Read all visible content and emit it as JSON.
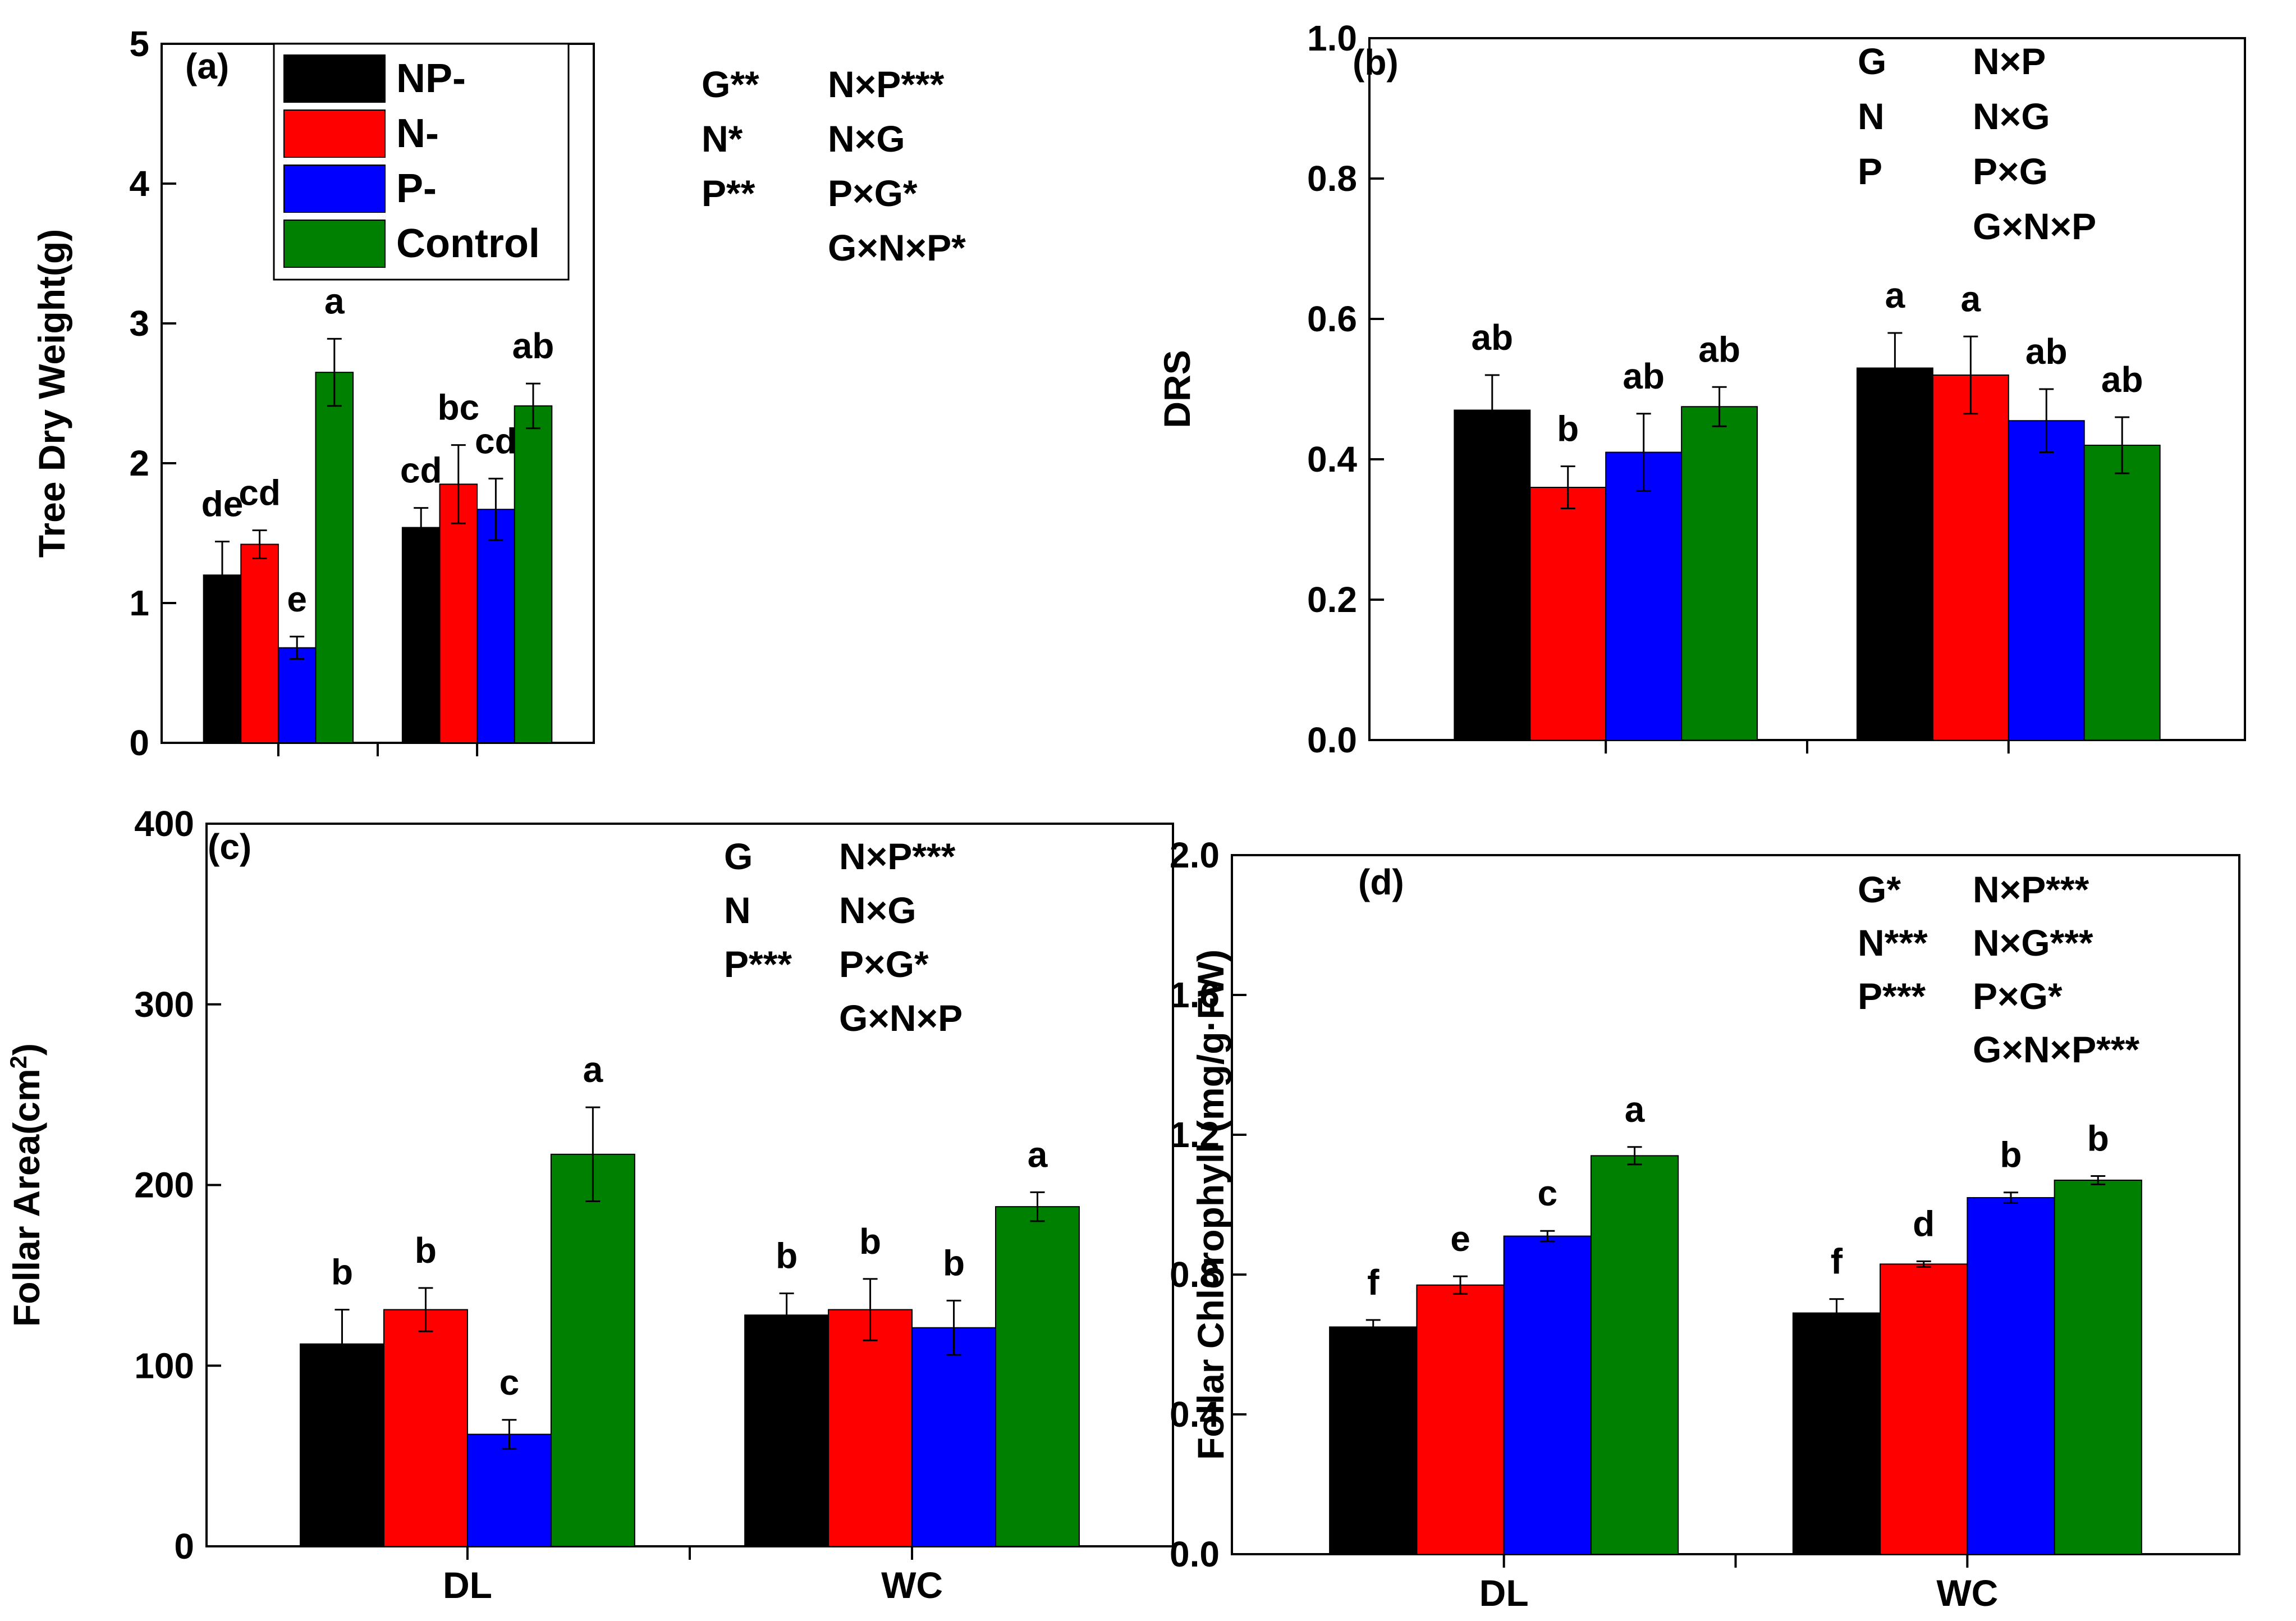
{
  "legend": {
    "entries": [
      {
        "label": "NP-",
        "color": "#000000"
      },
      {
        "label": "N-",
        "color": "#ff0000"
      },
      {
        "label": "P-",
        "color": "#0000ff"
      },
      {
        "label": "Control",
        "color": "#008000"
      }
    ]
  },
  "chart_data": [
    {
      "panel": "(a)",
      "type": "bar",
      "ylabel": "Tree Dry Weight(g)",
      "ylim": [
        0,
        5
      ],
      "yticks": [
        "0",
        "1",
        "2",
        "3",
        "4",
        "5"
      ],
      "categories": [
        "",
        ""
      ],
      "series": [
        {
          "name": "NP-",
          "color": "#000000",
          "values": [
            1.2,
            1.54
          ],
          "errors": [
            0.24,
            0.14
          ],
          "letters": [
            "de",
            "cd"
          ]
        },
        {
          "name": "N-",
          "color": "#ff0000",
          "values": [
            1.42,
            1.85
          ],
          "errors": [
            0.1,
            0.28
          ],
          "letters": [
            "cd",
            "bc"
          ]
        },
        {
          "name": "P-",
          "color": "#0000ff",
          "values": [
            0.68,
            1.67
          ],
          "errors": [
            0.08,
            0.22
          ],
          "letters": [
            "e",
            "cd"
          ]
        },
        {
          "name": "Control",
          "color": "#008000",
          "values": [
            2.65,
            2.41
          ],
          "errors": [
            0.24,
            0.16
          ],
          "letters": [
            "a",
            "ab"
          ]
        }
      ],
      "significance": [
        [
          "G**",
          "N×P***"
        ],
        [
          "N*",
          "N×G"
        ],
        [
          "P**",
          "P×G*"
        ],
        [
          "",
          "G×N×P*"
        ]
      ]
    },
    {
      "panel": "(b)",
      "type": "bar",
      "ylabel": "DRS",
      "ylim": [
        0,
        1.0
      ],
      "yticks": [
        "0.0",
        "0.2",
        "0.4",
        "0.6",
        "0.8",
        "1.0"
      ],
      "categories": [
        "",
        ""
      ],
      "series": [
        {
          "name": "NP-",
          "color": "#000000",
          "values": [
            0.47,
            0.53
          ],
          "errors": [
            0.05,
            0.05
          ],
          "letters": [
            "ab",
            "a"
          ]
        },
        {
          "name": "N-",
          "color": "#ff0000",
          "values": [
            0.36,
            0.52
          ],
          "errors": [
            0.03,
            0.055
          ],
          "letters": [
            "b",
            "a"
          ]
        },
        {
          "name": "P-",
          "color": "#0000ff",
          "values": [
            0.41,
            0.455
          ],
          "errors": [
            0.055,
            0.045
          ],
          "letters": [
            "ab",
            "ab"
          ]
        },
        {
          "name": "Control",
          "color": "#008000",
          "values": [
            0.475,
            0.42
          ],
          "errors": [
            0.028,
            0.04
          ],
          "letters": [
            "ab",
            "ab"
          ]
        }
      ],
      "significance": [
        [
          "G",
          "N×P"
        ],
        [
          "N",
          "N×G"
        ],
        [
          "P",
          "P×G"
        ],
        [
          "",
          "G×N×P"
        ]
      ]
    },
    {
      "panel": "(c)",
      "type": "bar",
      "ylabel": "Follar Area(cm²)",
      "ylim": [
        0,
        400
      ],
      "yticks": [
        "0",
        "100",
        "200",
        "300",
        "400"
      ],
      "categories": [
        "DL",
        "WC"
      ],
      "series": [
        {
          "name": "NP-",
          "color": "#000000",
          "values": [
            112,
            128
          ],
          "errors": [
            19,
            12
          ],
          "letters": [
            "b",
            "b"
          ]
        },
        {
          "name": "N-",
          "color": "#ff0000",
          "values": [
            131,
            131
          ],
          "errors": [
            12,
            17
          ],
          "letters": [
            "b",
            "b"
          ]
        },
        {
          "name": "P-",
          "color": "#0000ff",
          "values": [
            62,
            121
          ],
          "errors": [
            8,
            15
          ],
          "letters": [
            "c",
            "b"
          ]
        },
        {
          "name": "Control",
          "color": "#008000",
          "values": [
            217,
            188
          ],
          "errors": [
            26,
            8
          ],
          "letters": [
            "a",
            "a"
          ]
        }
      ],
      "significance": [
        [
          "G",
          "N×P***"
        ],
        [
          "N",
          "N×G"
        ],
        [
          "P***",
          "P×G*"
        ],
        [
          "",
          "G×N×P"
        ]
      ]
    },
    {
      "panel": "(d)",
      "type": "bar",
      "ylabel": "Follar Chlorophyll (mg/g·FW)",
      "ylim": [
        0,
        2.0
      ],
      "yticks": [
        "0.0",
        "0.4",
        "0.8",
        "1.2",
        "1.6",
        "2.0"
      ],
      "categories": [
        "DL",
        "WC"
      ],
      "series": [
        {
          "name": "NP-",
          "color": "#000000",
          "values": [
            0.65,
            0.69
          ],
          "errors": [
            0.02,
            0.04
          ],
          "letters": [
            "f",
            "f"
          ]
        },
        {
          "name": "N-",
          "color": "#ff0000",
          "values": [
            0.77,
            0.83
          ],
          "errors": [
            0.025,
            0.008
          ],
          "letters": [
            "e",
            "d"
          ]
        },
        {
          "name": "P-",
          "color": "#0000ff",
          "values": [
            0.91,
            1.02
          ],
          "errors": [
            0.015,
            0.015
          ],
          "letters": [
            "c",
            "b"
          ]
        },
        {
          "name": "Control",
          "color": "#008000",
          "values": [
            1.14,
            1.07
          ],
          "errors": [
            0.025,
            0.012
          ],
          "letters": [
            "a",
            "b"
          ]
        }
      ],
      "significance": [
        [
          "G*",
          "N×P***"
        ],
        [
          "N***",
          "N×G***"
        ],
        [
          "P***",
          "P×G*"
        ],
        [
          "",
          "G×N×P***"
        ]
      ]
    }
  ]
}
